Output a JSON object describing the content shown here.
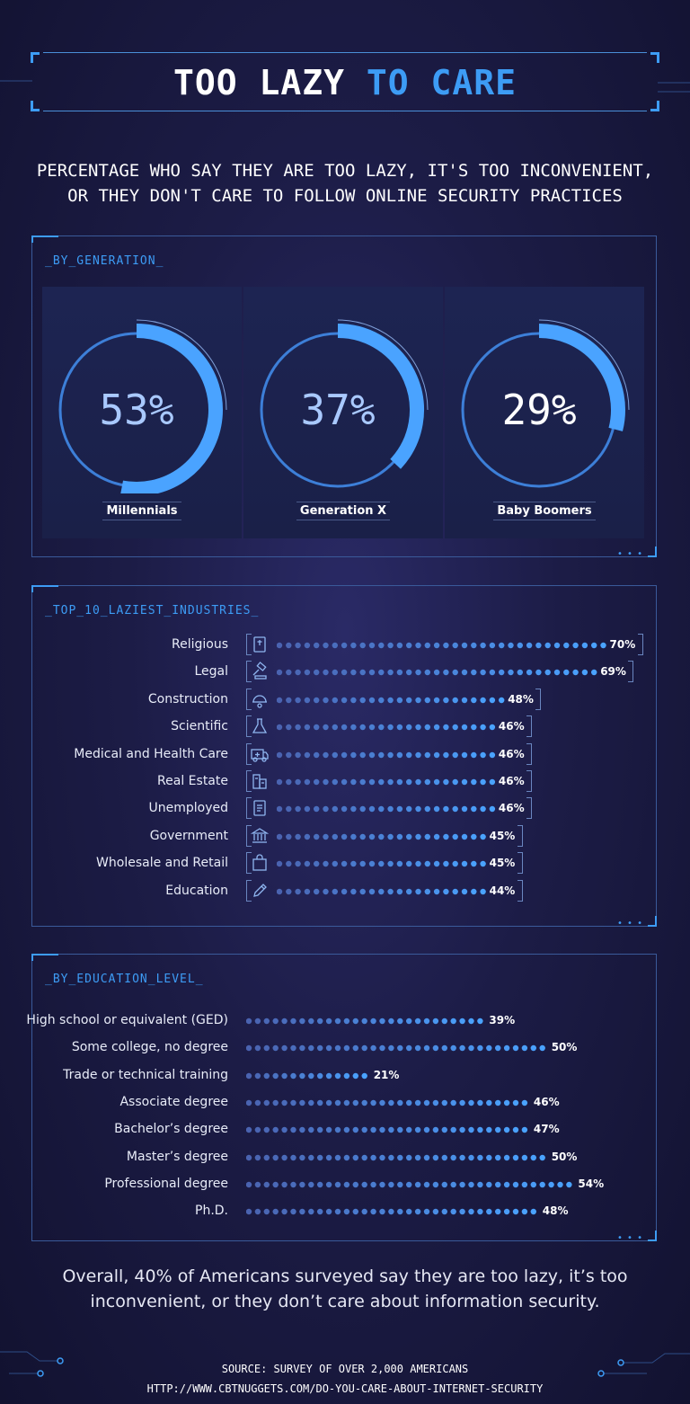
{
  "title": {
    "main": "TOO LAZY",
    "highlight": "TO CARE"
  },
  "subtitle": {
    "line1": "PERCENTAGE WHO SAY THEY ARE TOO LAZY, IT'S TOO INCONVENIENT,",
    "line2": "OR THEY DON'T CARE TO FOLLOW ONLINE SECURITY PRACTICES"
  },
  "colors": {
    "accent": "#3d9cf5",
    "dot_dim": "#4a63b0",
    "dot_bright": "#4aa3ff",
    "background": "#1c1c46"
  },
  "chart_data": [
    {
      "type": "pie",
      "title": "_BY_GENERATION_",
      "categories": [
        "Millennials",
        "Generation X",
        "Baby Boomers"
      ],
      "values": [
        53,
        37,
        29
      ],
      "display": [
        "53%",
        "37%",
        "29%"
      ]
    },
    {
      "type": "bar",
      "title": "_TOP_10_LAZIEST_INDUSTRIES_",
      "categories": [
        "Religious",
        "Legal",
        "Construction",
        "Scientific",
        "Medical and Health Care",
        "Real Estate",
        "Unemployed",
        "Government",
        "Wholesale and Retail",
        "Education"
      ],
      "values": [
        70,
        69,
        48,
        46,
        46,
        46,
        46,
        45,
        45,
        44
      ],
      "display": [
        "70%",
        "69%",
        "48%",
        "46%",
        "46%",
        "46%",
        "46%",
        "45%",
        "45%",
        "44%"
      ],
      "icons": [
        "bible-icon",
        "gavel-icon",
        "hardhat-icon",
        "flask-icon",
        "ambulance-icon",
        "building-icon",
        "document-icon",
        "capitol-icon",
        "shopping-bag-icon",
        "pencil-icon"
      ]
    },
    {
      "type": "bar",
      "title": "_BY_EDUCATION_LEVEL_",
      "categories": [
        "High school or equivalent (GED)",
        "Some college, no degree",
        "Trade or technical training",
        "Associate degree",
        "Bachelor’s degree",
        "Master’s degree",
        "Professional degree",
        "Ph.D."
      ],
      "values": [
        39,
        50,
        21,
        46,
        47,
        50,
        54,
        48
      ],
      "display": [
        "39%",
        "50%",
        "21%",
        "46%",
        "47%",
        "50%",
        "54%",
        "48%"
      ]
    }
  ],
  "overall": {
    "line1": "Overall, 40% of Americans surveyed say they are too lazy, it’s too",
    "line2": "inconvenient, or they don’t care about information security."
  },
  "source": {
    "line1": "SOURCE:  SURVEY OF OVER 2,000 AMERICANS",
    "line2": "HTTP://WWW.CBTNUGGETS.COM/DO-YOU-CARE-ABOUT-INTERNET-SECURITY"
  }
}
